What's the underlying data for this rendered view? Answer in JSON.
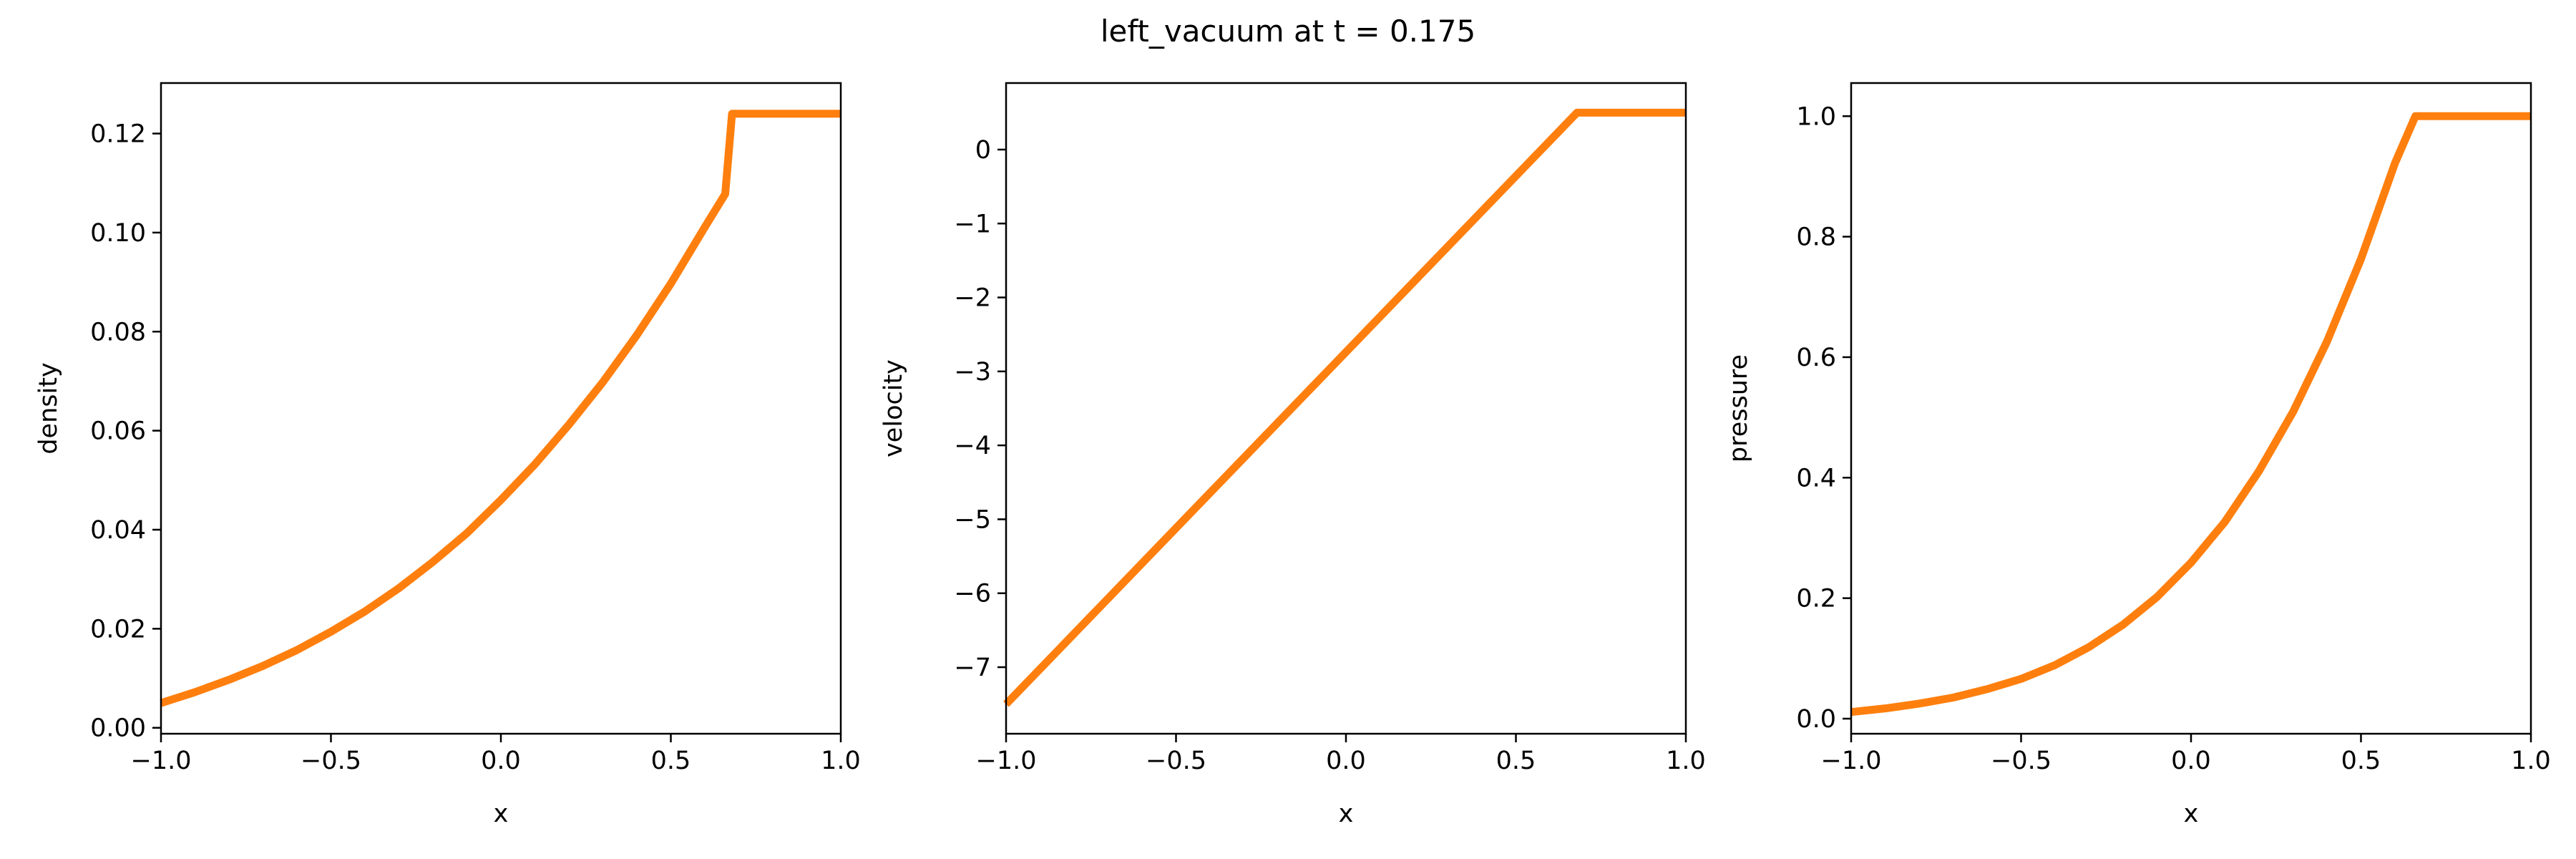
{
  "figure": {
    "title": "left_vacuum at t = 0.175"
  },
  "colors": {
    "series": "#ff7f0e",
    "axes": "#000000",
    "background": "#ffffff"
  },
  "chart_data": [
    {
      "type": "line",
      "xlabel": "x",
      "ylabel": "density",
      "xlim": [
        -1.0,
        1.0
      ],
      "ylim": [
        -0.0012,
        0.1302
      ],
      "xticks": [
        -1.0,
        -0.5,
        0.0,
        0.5,
        1.0
      ],
      "xtick_labels": [
        "−1.0",
        "−0.5",
        "0.0",
        "0.5",
        "1.0"
      ],
      "yticks": [
        0.0,
        0.02,
        0.04,
        0.06,
        0.08,
        0.1,
        0.12
      ],
      "ytick_labels": [
        "0.00",
        "0.02",
        "0.04",
        "0.06",
        "0.08",
        "0.10",
        "0.12"
      ],
      "grid": false,
      "series": [
        {
          "x": [
            -1.0,
            -0.9,
            -0.8,
            -0.7,
            -0.6,
            -0.5,
            -0.4,
            -0.3,
            -0.2,
            -0.1,
            0.0,
            0.1,
            0.2,
            0.3,
            0.4,
            0.5,
            0.6,
            0.66,
            0.68,
            1.0
          ],
          "y": [
            0.005,
            0.0072,
            0.0097,
            0.0125,
            0.0157,
            0.0194,
            0.0235,
            0.0282,
            0.0335,
            0.0393,
            0.046,
            0.0532,
            0.0612,
            0.0698,
            0.0793,
            0.0897,
            0.1011,
            0.1078,
            0.124,
            0.124
          ]
        }
      ]
    },
    {
      "type": "line",
      "xlabel": "x",
      "ylabel": "velocity",
      "xlim": [
        -1.0,
        1.0
      ],
      "ylim": [
        -7.9,
        0.9
      ],
      "xticks": [
        -1.0,
        -0.5,
        0.0,
        0.5,
        1.0
      ],
      "xtick_labels": [
        "−1.0",
        "−0.5",
        "0.0",
        "0.5",
        "1.0"
      ],
      "yticks": [
        -7,
        -6,
        -5,
        -4,
        -3,
        -2,
        -1,
        0
      ],
      "ytick_labels": [
        "−7",
        "−6",
        "−5",
        "−4",
        "−3",
        "−2",
        "−1",
        "0"
      ],
      "grid": false,
      "series": [
        {
          "x": [
            -1.0,
            0.68,
            1.0
          ],
          "y": [
            -7.5,
            0.5,
            0.5
          ]
        }
      ]
    },
    {
      "type": "line",
      "xlabel": "x",
      "ylabel": "pressure",
      "xlim": [
        -1.0,
        1.0
      ],
      "ylim": [
        -0.025,
        1.055
      ],
      "xticks": [
        -1.0,
        -0.5,
        0.0,
        0.5,
        1.0
      ],
      "xtick_labels": [
        "−1.0",
        "−0.5",
        "0.0",
        "0.5",
        "1.0"
      ],
      "yticks": [
        0.0,
        0.2,
        0.4,
        0.6,
        0.8,
        1.0
      ],
      "ytick_labels": [
        "0.0",
        "0.2",
        "0.4",
        "0.6",
        "0.8",
        "1.0"
      ],
      "grid": false,
      "series": [
        {
          "x": [
            -1.0,
            -0.9,
            -0.8,
            -0.7,
            -0.6,
            -0.5,
            -0.4,
            -0.3,
            -0.2,
            -0.1,
            0.0,
            0.1,
            0.2,
            0.3,
            0.4,
            0.5,
            0.6,
            0.66,
            0.68,
            1.0
          ],
          "y": [
            0.011,
            0.017,
            0.025,
            0.035,
            0.049,
            0.066,
            0.089,
            0.119,
            0.156,
            0.202,
            0.259,
            0.327,
            0.411,
            0.509,
            0.626,
            0.763,
            0.922,
            1.0,
            1.0,
            1.0
          ]
        }
      ]
    }
  ]
}
